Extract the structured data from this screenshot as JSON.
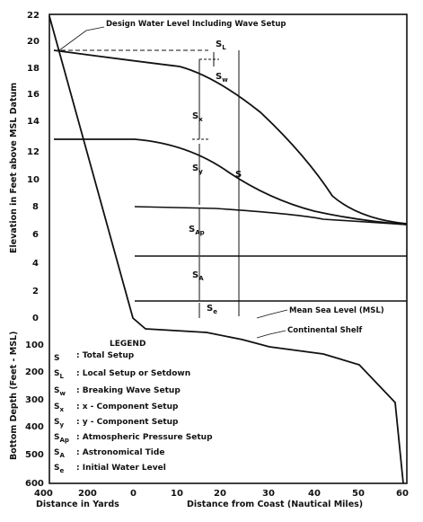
{
  "chart_data": {
    "type": "diagram",
    "upper_panel": {
      "ylabel": "Elevation in Feet above MSL Datum",
      "y_ticks": [
        "22",
        "20",
        "18",
        "16",
        "14",
        "12",
        "10",
        "8",
        "6",
        "4",
        "2",
        "0"
      ],
      "ylim": [
        0,
        22
      ]
    },
    "lower_panel": {
      "ylabel": "Bottom Depth (Feet - MSL)",
      "y_ticks": [
        "100",
        "200",
        "300",
        "400",
        "500",
        "600"
      ],
      "ylim": [
        0,
        600
      ]
    },
    "x_axis": {
      "left_ticks": [
        "400",
        "200",
        "0"
      ],
      "right_ticks": [
        "10",
        "20",
        "30",
        "40",
        "50",
        "60"
      ],
      "left_label": "Distance in Yards",
      "right_label": "Distance from Coast (Nautical Miles)"
    },
    "annotations": {
      "design_water_level": "Design Water Level Including Wave Setup",
      "mean_sea_level": "Mean Sea Level (MSL)",
      "continental_shelf": "Continental Shelf"
    },
    "symbols": {
      "S": "S",
      "SL": {
        "base": "S",
        "sub": "L"
      },
      "Sw": {
        "base": "S",
        "sub": "w"
      },
      "Sx": {
        "base": "S",
        "sub": "x"
      },
      "Sy": {
        "base": "S",
        "sub": "y"
      },
      "SAp": {
        "base": "S",
        "sub": "Ap"
      },
      "SA": {
        "base": "S",
        "sub": "A"
      },
      "Se": {
        "base": "S",
        "sub": "e"
      }
    },
    "legend": {
      "title": "LEGEND",
      "items": [
        {
          "sym": "S",
          "sub": "",
          "desc": ": Total Setup"
        },
        {
          "sym": "S",
          "sub": "L",
          "desc": ": Local Setup or Setdown"
        },
        {
          "sym": "S",
          "sub": "w",
          "desc": ": Breaking Wave Setup"
        },
        {
          "sym": "S",
          "sub": "x",
          "desc": ": x - Component Setup"
        },
        {
          "sym": "S",
          "sub": "y",
          "desc": ": y - Component Setup"
        },
        {
          "sym": "S",
          "sub": "Ap",
          "desc": ": Atmospheric Pressure Setup"
        },
        {
          "sym": "S",
          "sub": "A",
          "desc": ": Astronomical Tide"
        },
        {
          "sym": "S",
          "sub": "e",
          "desc": ": Initial Water Level"
        }
      ]
    }
  }
}
